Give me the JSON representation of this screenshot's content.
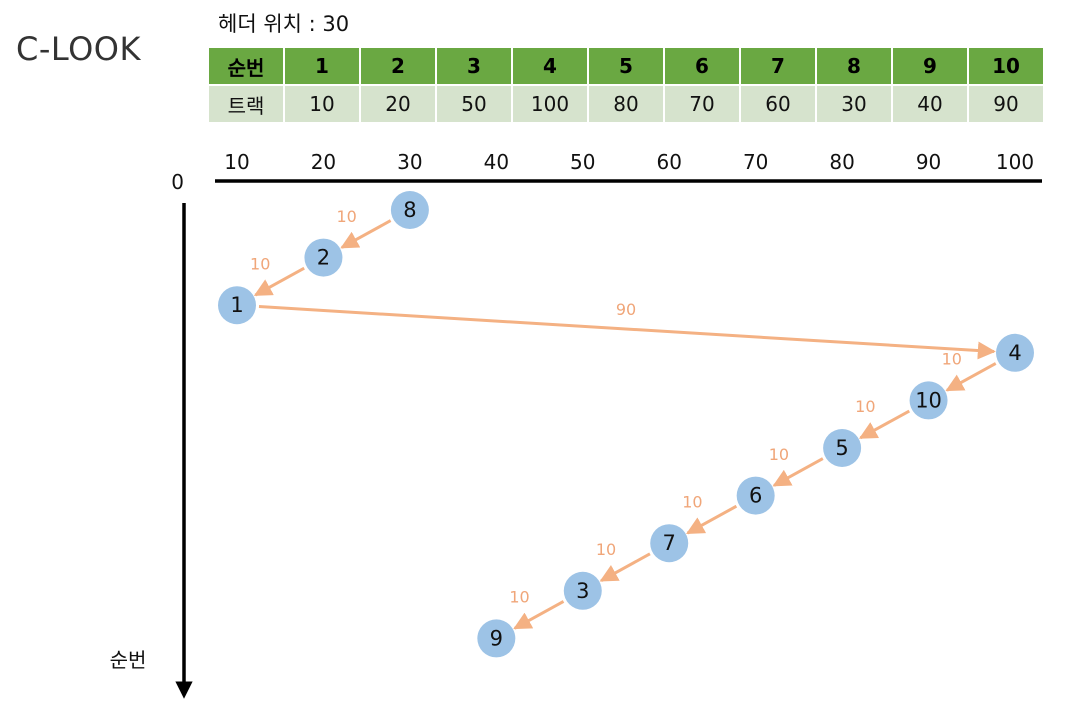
{
  "title": "C-LOOK",
  "head_position": "헤더 위치 : 30",
  "table": {
    "header_label": "순번",
    "track_label": "트랙",
    "order": [
      "1",
      "2",
      "3",
      "4",
      "5",
      "6",
      "7",
      "8",
      "9",
      "10"
    ],
    "tracks": [
      "10",
      "20",
      "50",
      "100",
      "80",
      "70",
      "60",
      "30",
      "40",
      "90"
    ]
  },
  "axis": {
    "x_ticks": [
      "10",
      "20",
      "30",
      "40",
      "50",
      "60",
      "70",
      "80",
      "90",
      "100"
    ],
    "origin_label": "0",
    "y_label": "순번"
  },
  "chart_data": {
    "type": "diagram",
    "algorithm": "C-LOOK",
    "head_start": 30,
    "sequence": [
      {
        "request": "8",
        "track": 30
      },
      {
        "request": "2",
        "track": 20
      },
      {
        "request": "1",
        "track": 10
      },
      {
        "request": "4",
        "track": 100
      },
      {
        "request": "10",
        "track": 90
      },
      {
        "request": "5",
        "track": 80
      },
      {
        "request": "6",
        "track": 70
      },
      {
        "request": "7",
        "track": 60
      },
      {
        "request": "3",
        "track": 50
      },
      {
        "request": "9",
        "track": 40
      }
    ],
    "moves": [
      "10",
      "10",
      "90",
      "10",
      "10",
      "10",
      "10",
      "10",
      "10"
    ]
  },
  "colors": {
    "header_green": "#6aa842",
    "row_green": "#d6e3cd",
    "node_blue": "#9dc3e6",
    "arrow_orange": "#f4b183",
    "label_orange": "#f0a679"
  }
}
